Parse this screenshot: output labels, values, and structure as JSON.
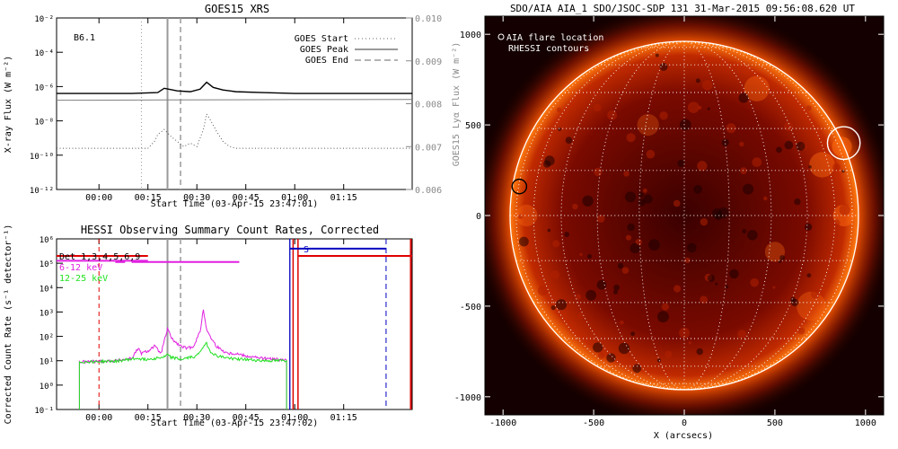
{
  "chart_data": [
    {
      "type": "line",
      "title": "GOES15 XRS",
      "flare_class": "B6.1",
      "xlabel": "Start Time (03-Apr-15 23:47:01)",
      "ylabel": "X-ray Flux (W m⁻²)",
      "y2label": "GOES15 Lyα Flux (W m⁻²)",
      "x_ticks": [
        "00:00",
        "00:15",
        "00:30",
        "00:45",
        "01:00",
        "01:15"
      ],
      "y_ticks": [
        "10⁻²",
        "10⁻⁴",
        "10⁻⁶",
        "10⁻⁸",
        "10⁻¹⁰",
        "10⁻¹²"
      ],
      "y2_ticks": [
        "0.010",
        "0.009",
        "0.008",
        "0.007",
        "0.006"
      ],
      "x_range_min": [
        -13,
        96
      ],
      "ylim_log": [
        -12,
        -2
      ],
      "y2lim": [
        0.006,
        0.01
      ],
      "legend": [
        {
          "label": "GOES Start",
          "style": "dotted",
          "color": "#9a9a9a"
        },
        {
          "label": "GOES Peak",
          "style": "solid",
          "color": "#9a9a9a"
        },
        {
          "label": "GOES End",
          "style": "dashed",
          "color": "#9a9a9a"
        }
      ],
      "legend_position": "top-right",
      "events_min": {
        "start": 13,
        "peak": 21,
        "end": 25
      },
      "series": [
        {
          "color": "#000000",
          "x": [
            -13,
            10,
            18,
            20,
            24,
            28,
            31,
            33,
            35,
            38,
            42,
            50,
            60,
            75,
            90,
            96
          ],
          "y": [
            -6.4,
            -6.4,
            -6.35,
            -6.1,
            -6.25,
            -6.3,
            -6.15,
            -5.75,
            -6.05,
            -6.2,
            -6.3,
            -6.35,
            -6.4,
            -6.4,
            -6.4,
            -6.4
          ]
        },
        {
          "color": "#808080",
          "x": [
            -13,
            20,
            60,
            96
          ],
          "y": [
            -6.8,
            -6.78,
            -6.76,
            -6.75
          ]
        },
        {
          "color": "#555555",
          "style": "dotted",
          "x": [
            -13,
            15,
            17,
            18,
            20,
            22,
            24,
            26,
            28,
            30,
            32,
            33,
            34,
            36,
            38,
            40,
            42,
            45,
            96
          ],
          "y": [
            -9.6,
            -9.6,
            -9.2,
            -8.8,
            -8.5,
            -8.9,
            -9.2,
            -9.5,
            -9.3,
            -9.5,
            -8.5,
            -7.6,
            -7.9,
            -8.6,
            -9.2,
            -9.5,
            -9.6,
            -9.6,
            -9.6
          ]
        }
      ]
    },
    {
      "type": "line",
      "title": "HESSI Observing Summary Count Rates, Corrected",
      "xlabel": "Start Time (03-Apr-15 23:47:02)",
      "ylabel": "Corrected Count Rate (s⁻¹ detector⁻¹)",
      "x_ticks": [
        "00:00",
        "00:15",
        "00:30",
        "00:45",
        "01:00",
        "01:15"
      ],
      "y_ticks": [
        "10⁶",
        "10⁵",
        "10⁴",
        "10³",
        "10²",
        "10¹",
        "10⁰",
        "10⁻¹"
      ],
      "x_range_min": [
        -13,
        96
      ],
      "ylim_log": [
        -1,
        6
      ],
      "legend": [
        {
          "label": "Det 1,3,4,5,6,9",
          "color": "#000000"
        },
        {
          "label": "6-12 keV",
          "color": "#e020e0"
        },
        {
          "label": "12-25 keV",
          "color": "#20e020"
        }
      ],
      "legend_position": "top-left",
      "flag_label": "S",
      "markers_min": {
        "red_dashed": 0,
        "grey_solid": 21,
        "grey_dashed": 25,
        "blue_solid": 58.5,
        "red_solid": [
          59.5,
          61
        ],
        "blue_dashed": 88
      },
      "series": [
        {
          "name": "6-12 keV",
          "color": "#e020e0",
          "x": [
            -6,
            5,
            10,
            12,
            13,
            15,
            17,
            19,
            20,
            21,
            22,
            23,
            25,
            27,
            29,
            31,
            32,
            33,
            34,
            35,
            36,
            37,
            38,
            40,
            42,
            45,
            50,
            55,
            57.5
          ],
          "y": [
            0.95,
            1.0,
            1.1,
            1.5,
            1.3,
            1.4,
            1.6,
            1.3,
            1.8,
            2.3,
            2.0,
            1.8,
            1.6,
            1.5,
            1.6,
            2.2,
            3.1,
            2.3,
            2.0,
            1.8,
            1.6,
            1.5,
            1.4,
            1.3,
            1.3,
            1.2,
            1.1,
            1.05,
            1.0
          ]
        },
        {
          "name": "12-25 keV",
          "color": "#20e020",
          "x": [
            -6,
            5,
            12,
            14,
            17,
            20,
            21,
            22,
            25,
            30,
            32,
            33,
            34,
            36,
            40,
            45,
            50,
            55,
            57.5
          ],
          "y": [
            0.95,
            0.98,
            1.1,
            1.05,
            1.1,
            1.15,
            1.25,
            1.15,
            1.05,
            1.2,
            1.6,
            1.7,
            1.4,
            1.2,
            1.1,
            1.05,
            1.0,
            1.0,
            1.0
          ]
        },
        {
          "name": "magenta-bar",
          "color": "#e020e0",
          "segments": [
            [
              -13,
              15,
              5.1
            ],
            [
              5,
              8,
              5.05
            ],
            [
              10,
              43,
              5.05
            ]
          ]
        },
        {
          "name": "red-bar",
          "color": "#e00000",
          "segments": [
            [
              -13,
              15,
              5.3
            ],
            [
              61,
              96,
              5.3
            ]
          ]
        },
        {
          "name": "blue-bar",
          "color": "#0000c0",
          "segments": [
            [
              58.5,
              88,
              5.6
            ]
          ]
        }
      ]
    },
    {
      "type": "heatmap",
      "title": "SDO/AIA AIA_1 SDO/JSOC-SDP 131 31-Mar-2015 09:56:08.620 UT",
      "xlabel": "X (arcsecs)",
      "x_ticks": [
        -1000,
        -500,
        0,
        500,
        1000
      ],
      "y_ticks": [
        1000,
        500,
        0,
        -500,
        -1000
      ],
      "xlim": [
        -1100,
        1100
      ],
      "ylim": [
        -1100,
        1100
      ],
      "solar_radius": 960,
      "legend": [
        "AIA flare location",
        "RHESSI contours"
      ],
      "legend_position": "top-left",
      "circles": [
        {
          "x": 880,
          "y": 400,
          "r": 90,
          "color": "#ffffff"
        },
        {
          "x": -910,
          "y": 160,
          "r": 40,
          "color": "#000000"
        }
      ],
      "colors": {
        "disk_core": "#3a0000",
        "disk_mid": "#9a1400",
        "limb": "#ff7a10",
        "background": "#140000"
      }
    }
  ]
}
